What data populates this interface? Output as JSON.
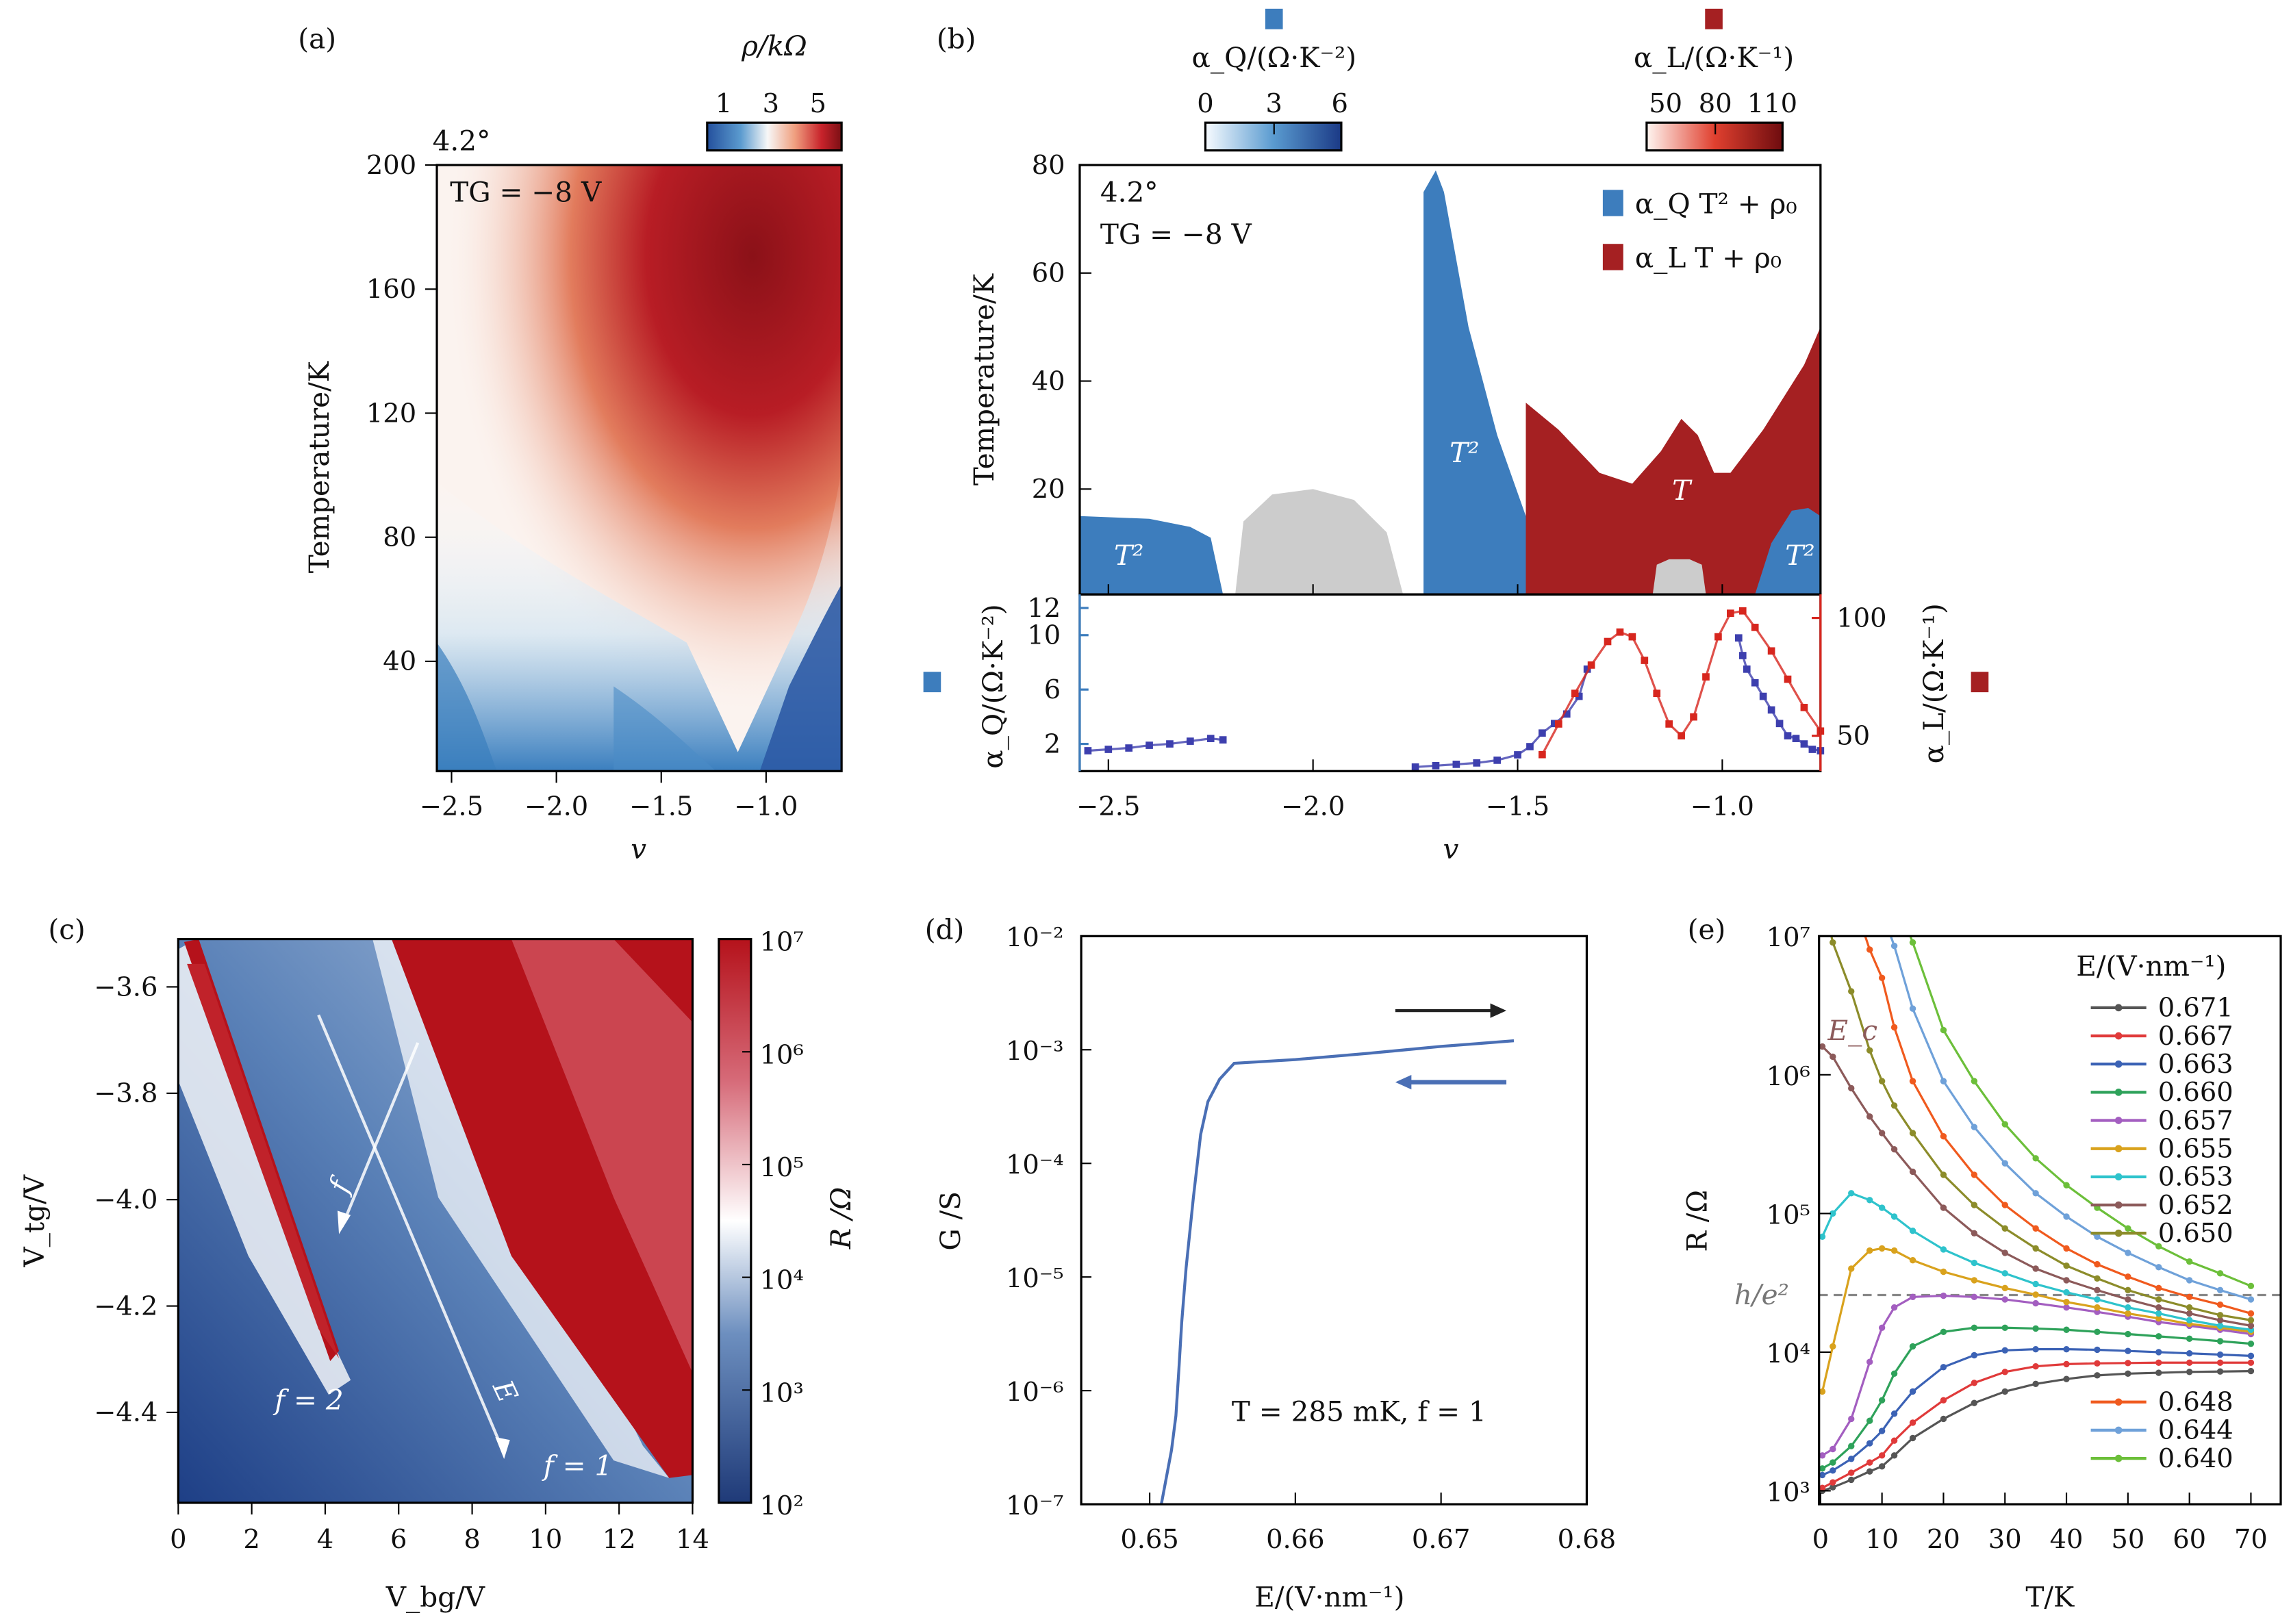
{
  "chart_data": [
    {
      "id": "a",
      "type": "heatmap",
      "panel_label": "(a)",
      "annotations": [
        "4.2°",
        "TG = −8 V"
      ],
      "xlabel": "v",
      "ylabel": "Temperature/K",
      "xlim": [
        -2.57,
        -0.64
      ],
      "ylim": [
        4.6,
        200
      ],
      "xticks": [
        -2.5,
        -2.0,
        -1.5,
        -1.0
      ],
      "xtick_labels": [
        "−2.5",
        "−2.0",
        "−1.5",
        "−1.0"
      ],
      "yticks": [
        40,
        80,
        120,
        160,
        200
      ],
      "colorbar": {
        "label": "ρ/kΩ",
        "ticks": [
          1,
          3,
          5
        ],
        "range": [
          0.3,
          6
        ],
        "colors": [
          "#2b5aa6",
          "#ffffff",
          "#8b1118"
        ],
        "placement": "top-right"
      }
    },
    {
      "id": "b_top",
      "type": "area",
      "panel_label": "(b)",
      "annotations": [
        "4.2°",
        "TG = −8 V"
      ],
      "xlabel": "v",
      "ylabel": "Temperature/K",
      "xlim": [
        -2.57,
        -0.76
      ],
      "ylim": [
        0.5,
        80
      ],
      "yticks": [
        20,
        40,
        60,
        80
      ],
      "legend": [
        {
          "label": "α_Q T² + ρ₀",
          "color": "#3d7dbd"
        },
        {
          "label": "α_L T + ρ₀",
          "color": "#a52022"
        }
      ],
      "legend_placement": "top-right",
      "region_labels": [
        "T²",
        "T²",
        "T",
        "T²"
      ],
      "regions": [
        {
          "kind": "quadratic",
          "color": "#3d7dbd",
          "boundary": [
            [
              -2.57,
              15
            ],
            [
              -2.4,
              14.5
            ],
            [
              -2.3,
              13
            ],
            [
              -2.25,
              11
            ],
            [
              -2.22,
              0.5
            ]
          ]
        },
        {
          "kind": "none",
          "color": "#cccccc",
          "boundary": [
            [
              -2.19,
              0.5
            ],
            [
              -2.17,
              14
            ],
            [
              -2.1,
              19
            ],
            [
              -2.0,
              20
            ],
            [
              -1.9,
              18
            ],
            [
              -1.82,
              12
            ],
            [
              -1.78,
              0.5
            ]
          ]
        },
        {
          "kind": "quadratic",
          "color": "#3d7dbd",
          "boundary": [
            [
              -1.73,
              0.5
            ],
            [
              -1.73,
              75
            ],
            [
              -1.7,
              79
            ],
            [
              -1.68,
              75
            ],
            [
              -1.62,
              50
            ],
            [
              -1.55,
              30
            ],
            [
              -1.48,
              15
            ],
            [
              -1.4,
              0.5
            ]
          ]
        },
        {
          "kind": "linear",
          "color": "#a52022",
          "boundary": [
            [
              -1.48,
              0.5
            ],
            [
              -1.48,
              36
            ],
            [
              -1.4,
              31
            ],
            [
              -1.3,
              23
            ],
            [
              -1.22,
              21
            ],
            [
              -1.15,
              27
            ],
            [
              -1.1,
              33
            ],
            [
              -1.06,
              30
            ],
            [
              -1.02,
              23
            ],
            [
              -0.98,
              23
            ],
            [
              -0.9,
              31
            ],
            [
              -0.8,
              43
            ],
            [
              -0.76,
              50
            ],
            [
              -0.76,
              0.5
            ]
          ]
        },
        {
          "kind": "none",
          "color": "#cccccc",
          "boundary": [
            [
              -1.17,
              0.5
            ],
            [
              -1.16,
              6
            ],
            [
              -1.13,
              7
            ],
            [
              -1.08,
              7
            ],
            [
              -1.05,
              6
            ],
            [
              -1.04,
              0.5
            ]
          ]
        },
        {
          "kind": "quadratic",
          "color": "#3d7dbd",
          "boundary": [
            [
              -0.92,
              0.5
            ],
            [
              -0.88,
              10
            ],
            [
              -0.83,
              16
            ],
            [
              -0.79,
              16.5
            ],
            [
              -0.76,
              15
            ],
            [
              -0.76,
              0.5
            ]
          ]
        }
      ]
    },
    {
      "id": "b_bottom",
      "type": "scatter",
      "xlabel": "v",
      "xticks": [
        -2.5,
        -2.0,
        -1.5,
        -1.0
      ],
      "xtick_labels": [
        "−2.5",
        "−2.0",
        "−1.5",
        "−1.0"
      ],
      "xlim": [
        -2.57,
        -0.76
      ],
      "y_left": {
        "label": "α_Q/(Ω·K⁻²)",
        "ticks": [
          2,
          6,
          10,
          12
        ],
        "range": [
          0,
          13
        ],
        "color": "#3d7dbd"
      },
      "y_right": {
        "label": "α_L/(Ω·K⁻¹)",
        "ticks": [
          50,
          100
        ],
        "range": [
          35,
          110
        ],
        "color": "#d7261e"
      },
      "series": [
        {
          "name": "α_Q segment 1",
          "axis": "left",
          "color": "#3d3fae",
          "x": [
            -2.55,
            -2.5,
            -2.45,
            -2.4,
            -2.35,
            -2.3,
            -2.25,
            -2.22
          ],
          "y": [
            1.5,
            1.6,
            1.7,
            1.9,
            2.0,
            2.2,
            2.4,
            2.3
          ]
        },
        {
          "name": "α_Q segment 2",
          "axis": "left",
          "color": "#3d3fae",
          "x": [
            -1.75,
            -1.7,
            -1.65,
            -1.6,
            -1.55,
            -1.5,
            -1.47,
            -1.44,
            -1.41,
            -1.38,
            -1.35,
            -1.33
          ],
          "y": [
            0.3,
            0.4,
            0.5,
            0.6,
            0.8,
            1.2,
            1.8,
            2.8,
            3.5,
            4.2,
            5.5,
            7.5
          ]
        },
        {
          "name": "α_Q segment 3",
          "axis": "left",
          "color": "#3d3fae",
          "x": [
            -0.96,
            -0.95,
            -0.94,
            -0.92,
            -0.9,
            -0.88,
            -0.86,
            -0.84,
            -0.82,
            -0.8,
            -0.78,
            -0.76
          ],
          "y": [
            9.8,
            8.5,
            7.5,
            6.5,
            5.5,
            4.5,
            3.5,
            2.6,
            2.4,
            2.0,
            1.6,
            1.5
          ]
        },
        {
          "name": "α_L",
          "axis": "right",
          "color": "#d7261e",
          "x": [
            -1.44,
            -1.4,
            -1.36,
            -1.32,
            -1.28,
            -1.25,
            -1.22,
            -1.19,
            -1.16,
            -1.13,
            -1.1,
            -1.07,
            -1.04,
            -1.01,
            -0.98,
            -0.95,
            -0.92,
            -0.88,
            -0.84,
            -0.8,
            -0.76
          ],
          "y": [
            42,
            55,
            68,
            80,
            90,
            94,
            92,
            82,
            68,
            55,
            50,
            58,
            75,
            92,
            102,
            103,
            96,
            86,
            74,
            62,
            52
          ]
        }
      ]
    },
    {
      "id": "c",
      "type": "heatmap",
      "panel_label": "(c)",
      "xlabel": "V_bg/V",
      "ylabel": "V_tg/V",
      "xlim": [
        0,
        14
      ],
      "ylim": [
        -4.57,
        -3.51
      ],
      "xticks": [
        0,
        2,
        4,
        6,
        8,
        10,
        12,
        14
      ],
      "yticks": [
        -3.6,
        -3.8,
        -4.0,
        -4.2,
        -4.4
      ],
      "ytick_labels": [
        "−3.6",
        "−3.8",
        "−4.0",
        "−4.2",
        "−4.4"
      ],
      "annotations": [
        "f = 2",
        "f = 1",
        "f",
        "E"
      ],
      "colorbar": {
        "label": "R /Ω",
        "scale": "log",
        "range": [
          100,
          10000000
        ],
        "tick_labels": [
          "10²",
          "10³",
          "10⁴",
          "10⁵",
          "10⁶",
          "10⁷"
        ],
        "colors": [
          "#1f3a78",
          "#ffffff",
          "#b5121b"
        ],
        "placement": "right"
      }
    },
    {
      "id": "d",
      "type": "line",
      "panel_label": "(d)",
      "xlabel": "E/(V·nm⁻¹)",
      "ylabel": "G /S",
      "xlim": [
        0.6453,
        0.68
      ],
      "ylim": [
        1e-07,
        0.01
      ],
      "yscale": "log",
      "xticks": [
        0.65,
        0.66,
        0.67,
        0.68
      ],
      "ytick_labels": [
        "10⁻⁷",
        "10⁻⁶",
        "10⁻⁵",
        "10⁻⁴",
        "10⁻³",
        "10⁻²"
      ],
      "annotation": "T = 285 mK, f = 1",
      "series": [
        {
          "name": "sweep",
          "color": "#4a6fb5",
          "x": [
            0.6508,
            0.6515,
            0.6518,
            0.652,
            0.6522,
            0.6525,
            0.653,
            0.6535,
            0.654,
            0.6548,
            0.6558,
            0.66,
            0.665,
            0.67,
            0.675
          ],
          "y": [
            1e-07,
            3e-07,
            6e-07,
            1.5e-06,
            4e-06,
            1.2e-05,
            5e-05,
            0.00018,
            0.00035,
            0.00055,
            0.00076,
            0.00082,
            0.00093,
            0.00107,
            0.0012
          ]
        }
      ],
      "arrows": [
        {
          "direction": "right",
          "color": "#222222"
        },
        {
          "direction": "left",
          "color": "#4a6fb5"
        }
      ]
    },
    {
      "id": "e",
      "type": "line",
      "panel_label": "(e)",
      "xlabel": "T/K",
      "ylabel": "R /Ω",
      "xlim": [
        0,
        72
      ],
      "ylim": [
        800,
        10000000
      ],
      "yscale": "log",
      "xticks": [
        0,
        10,
        20,
        30,
        40,
        50,
        60,
        70
      ],
      "ytick_labels": [
        "10³",
        "10⁴",
        "10⁵",
        "10⁶",
        "10⁷"
      ],
      "hline": {
        "label": "h/e²",
        "value": 25813,
        "color": "#888888",
        "style": "dashed"
      },
      "annotation": "E_c",
      "legend_title": "E/(V·nm⁻¹)",
      "legend_placement": "right",
      "x": [
        0.3,
        2,
        5,
        8,
        10,
        12,
        15,
        20,
        25,
        30,
        35,
        40,
        45,
        50,
        55,
        60,
        65,
        70
      ],
      "series": [
        {
          "name": "0.671",
          "color": "#555555",
          "y": [
            1000,
            1060,
            1200,
            1380,
            1500,
            1800,
            2400,
            3300,
            4300,
            5200,
            5900,
            6400,
            6800,
            7000,
            7100,
            7200,
            7250,
            7300
          ]
        },
        {
          "name": "0.667",
          "color": "#e03a3a",
          "y": [
            1050,
            1150,
            1350,
            1600,
            1800,
            2300,
            3100,
            4500,
            6000,
            7200,
            7900,
            8200,
            8300,
            8350,
            8400,
            8400,
            8400,
            8400
          ]
        },
        {
          "name": "0.663",
          "color": "#3b62b5",
          "y": [
            1300,
            1400,
            1700,
            2200,
            2700,
            3600,
            5200,
            7800,
            9500,
            10300,
            10500,
            10500,
            10400,
            10200,
            10000,
            9800,
            9600,
            9400
          ]
        },
        {
          "name": "0.660",
          "color": "#2ea25a",
          "y": [
            1450,
            1600,
            2100,
            3200,
            4500,
            7000,
            11000,
            14000,
            15000,
            15000,
            14800,
            14500,
            14000,
            13500,
            13000,
            12500,
            12000,
            11500
          ]
        },
        {
          "name": "0.657",
          "color": "#a35ec0",
          "y": [
            1800,
            2000,
            3300,
            8500,
            15000,
            21000,
            25000,
            25500,
            25000,
            24000,
            22500,
            21000,
            19500,
            18000,
            16500,
            15500,
            14500,
            13500
          ]
        },
        {
          "name": "0.655",
          "color": "#d9a21d",
          "y": [
            5200,
            11000,
            40000,
            54000,
            56000,
            54000,
            46000,
            38000,
            33000,
            29000,
            26000,
            23000,
            21000,
            19000,
            17500,
            16000,
            15000,
            14000
          ]
        },
        {
          "name": "0.653",
          "color": "#2ec3cc",
          "y": [
            68000,
            100000,
            140000,
            125000,
            110000,
            95000,
            75000,
            55000,
            44000,
            37000,
            31000,
            27000,
            24000,
            21000,
            19000,
            17000,
            15500,
            14500
          ]
        },
        {
          "name": "0.652",
          "color": "#8c5a5a",
          "y": [
            1600000,
            1350000,
            800000,
            500000,
            380000,
            290000,
            200000,
            110000,
            72000,
            52000,
            40000,
            33000,
            28000,
            24000,
            21000,
            19000,
            17000,
            15500
          ]
        },
        {
          "name": "0.650",
          "color": "#8c8c2a",
          "y": [
            20000000,
            9000000,
            4000000,
            1500000,
            900000,
            600000,
            380000,
            190000,
            115000,
            78000,
            56000,
            42000,
            34000,
            28000,
            24000,
            21000,
            18500,
            17000
          ]
        },
        {
          "name": "0.648",
          "color": "#f05a1e",
          "y": [
            100000000,
            50000000,
            20000000,
            8000000,
            5000000,
            2200000,
            900000,
            360000,
            190000,
            115000,
            78000,
            56000,
            43000,
            35000,
            29000,
            25000,
            22000,
            19000
          ]
        },
        {
          "name": "0.644",
          "color": "#6fa1d9",
          "y": [
            500000000,
            200000000,
            80000000,
            30000000,
            15000000,
            8500000,
            3000000,
            900000,
            420000,
            230000,
            140000,
            95000,
            68000,
            52000,
            41000,
            33000,
            28000,
            24000
          ]
        },
        {
          "name": "0.640",
          "color": "#6cbf3a",
          "y": [
            1000000000,
            500000000,
            200000000,
            80000000,
            40000000,
            20000000,
            9000000,
            2100000,
            900000,
            440000,
            250000,
            160000,
            110000,
            78000,
            58000,
            45000,
            37000,
            30000
          ]
        }
      ]
    }
  ],
  "b_header": {
    "q_colorbar": {
      "label": "α_Q/(Ω·K⁻²)",
      "ticks": [
        "0",
        "3",
        "6"
      ],
      "swatch_color": "#3d7dbd"
    },
    "l_colorbar": {
      "label": "α_L/(Ω·K⁻¹)",
      "ticks": [
        "50",
        "80",
        "110"
      ],
      "swatch_color": "#a52022"
    }
  }
}
